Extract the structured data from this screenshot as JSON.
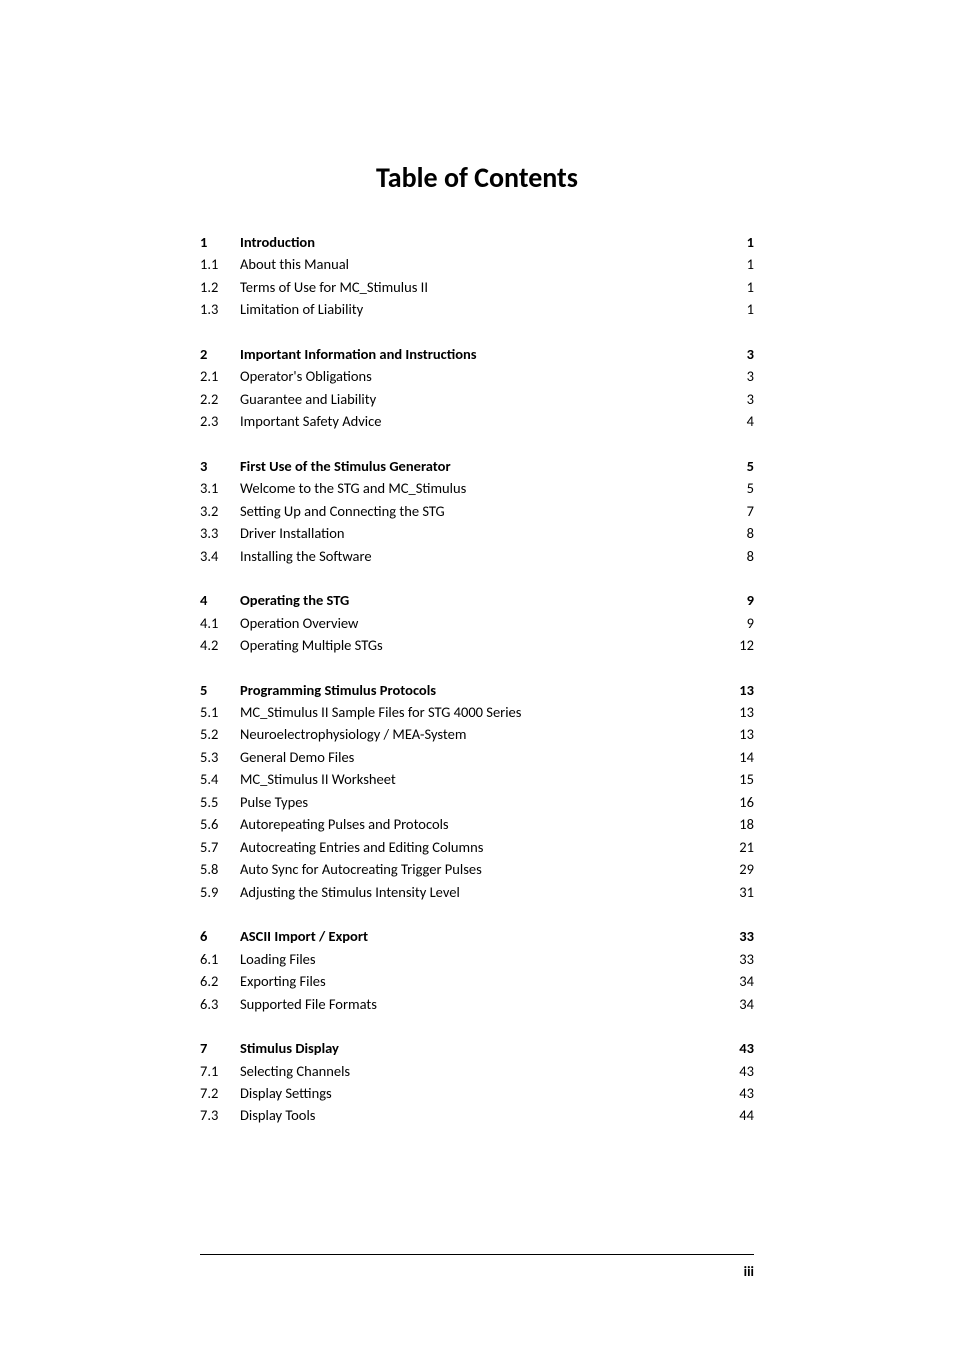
{
  "title": "Table of Contents",
  "sections": [
    {
      "header": {
        "num": "1",
        "label": "Introduction",
        "page": "1"
      },
      "items": [
        {
          "num": "1.1",
          "label": "About this Manual",
          "page": "1"
        },
        {
          "num": "1.2",
          "label": "Terms of Use for MC_Stimulus II",
          "page": "1"
        },
        {
          "num": "1.3",
          "label": "Limitation of Liability",
          "page": "1"
        }
      ]
    },
    {
      "header": {
        "num": "2",
        "label": "Important Information and Instructions",
        "page": "3"
      },
      "items": [
        {
          "num": "2.1",
          "label": "Operator's Obligations",
          "page": "3"
        },
        {
          "num": "2.2",
          "label": "Guarantee and Liability",
          "page": "3"
        },
        {
          "num": "2.3",
          "label": "Important Safety Advice",
          "page": "4"
        }
      ]
    },
    {
      "header": {
        "num": "3",
        "label": "First Use of the Stimulus Generator",
        "page": "5"
      },
      "items": [
        {
          "num": "3.1",
          "label": "Welcome to the STG and MC_Stimulus",
          "page": "5"
        },
        {
          "num": "3.2",
          "label": "Setting Up and Connecting the STG",
          "page": "7"
        },
        {
          "num": "3.3",
          "label": "Driver Installation",
          "page": "8"
        },
        {
          "num": "3.4",
          "label": "Installing the Software",
          "page": "8"
        }
      ]
    },
    {
      "header": {
        "num": "4",
        "label": "Operating the STG",
        "page": "9"
      },
      "items": [
        {
          "num": "4.1",
          "label": "Operation Overview",
          "page": "9"
        },
        {
          "num": "4.2",
          "label": "Operating Multiple STGs",
          "page": "12"
        }
      ]
    },
    {
      "header": {
        "num": "5",
        "label": "Programming Stimulus Protocols",
        "page": "13"
      },
      "items": [
        {
          "num": "5.1",
          "label": "MC_Stimulus II Sample Files for STG 4000 Series",
          "page": "13"
        },
        {
          "num": "5.2",
          "label": "Neuroelectrophysiology / MEA-System",
          "page": "13"
        },
        {
          "num": "5.3",
          "label": "General Demo Files",
          "page": "14"
        },
        {
          "num": "5.4",
          "label": "MC_Stimulus II Worksheet",
          "page": "15"
        },
        {
          "num": "5.5",
          "label": "Pulse Types",
          "page": "16"
        },
        {
          "num": "5.6",
          "label": "Autorepeating Pulses and Protocols",
          "page": "18"
        },
        {
          "num": "5.7",
          "label": "Autocreating Entries and Editing Columns",
          "page": "21"
        },
        {
          "num": "5.8",
          "label": "Auto Sync for Autocreating Trigger Pulses",
          "page": "29"
        },
        {
          "num": "5.9",
          "label": "Adjusting the Stimulus Intensity Level",
          "page": "31"
        }
      ]
    },
    {
      "header": {
        "num": "6",
        "label": "ASCII Import / Export",
        "page": "33"
      },
      "items": [
        {
          "num": "6.1",
          "label": "Loading Files",
          "page": "33"
        },
        {
          "num": "6.2",
          "label": "Exporting Files",
          "page": "34"
        },
        {
          "num": "6.3",
          "label": "Supported File Formats",
          "page": "34"
        }
      ]
    },
    {
      "header": {
        "num": "7",
        "label": "Stimulus Display",
        "page": "43"
      },
      "items": [
        {
          "num": "7.1",
          "label": "Selecting Channels",
          "page": "43"
        },
        {
          "num": "7.2",
          "label": "Display Settings",
          "page": "43"
        },
        {
          "num": "7.3",
          "label": "Display Tools",
          "page": "44"
        }
      ]
    }
  ],
  "footer": "iii"
}
